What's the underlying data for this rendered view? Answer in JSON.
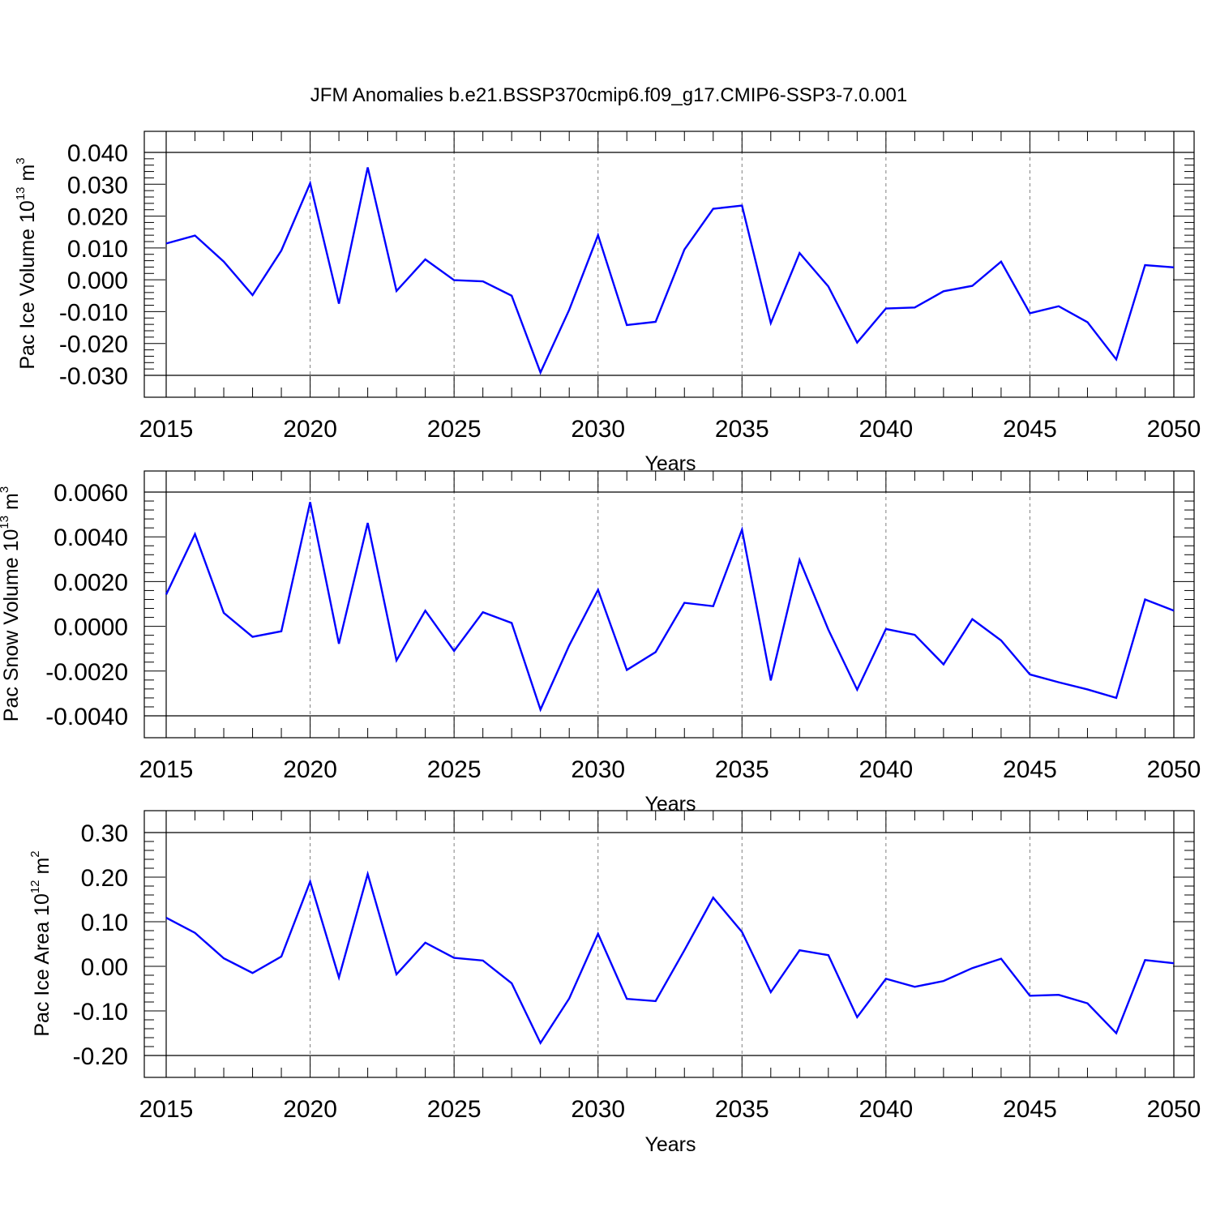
{
  "title": "JFM Anomalies b.e21.BSSP370cmip6.f09_g17.CMIP6-SSP3-7.0.001",
  "colors": {
    "line": "#0000ff",
    "axis": "#000000",
    "grid": "#808080"
  },
  "chart_data": [
    {
      "type": "line",
      "xlabel": "Years",
      "ylabel": {
        "text": "Pac Ice Volume 10",
        "sup": "13",
        "unit": " m",
        "unit_sup": "3"
      },
      "xlim": [
        2015,
        2050
      ],
      "ylim": [
        -0.03,
        0.04
      ],
      "xticks": [
        2015,
        2020,
        2025,
        2030,
        2035,
        2040,
        2045,
        2050
      ],
      "xtick_labels": [
        "2015",
        "2020",
        "2025",
        "2030",
        "2035",
        "2040",
        "2045",
        "2050"
      ],
      "yticks": [
        0.04,
        0.03,
        0.02,
        0.01,
        0.0,
        -0.01,
        -0.02,
        -0.03
      ],
      "ytick_labels": [
        "0.040",
        "0.030",
        "0.020",
        "0.010",
        "0.000",
        "-0.010",
        "-0.020",
        "-0.030"
      ],
      "grid": "dashed vertical at major x ticks",
      "series": [
        {
          "x": [
            2015,
            2016,
            2017,
            2018,
            2019,
            2020,
            2021,
            2022,
            2023,
            2024,
            2025,
            2026,
            2027,
            2028,
            2029,
            2030,
            2031,
            2032,
            2033,
            2034,
            2035,
            2036,
            2037,
            2038,
            2039,
            2040,
            2041,
            2042,
            2043,
            2044,
            2045,
            2046,
            2047,
            2048,
            2049,
            2050
          ],
          "values": [
            0.0114,
            0.0139,
            0.0057,
            -0.0048,
            0.0092,
            0.0303,
            -0.0075,
            0.0353,
            -0.0035,
            0.0064,
            -0.0001,
            -0.0005,
            -0.005,
            -0.0291,
            -0.0094,
            0.014,
            -0.0142,
            -0.0132,
            0.0095,
            0.0223,
            0.0233,
            -0.0136,
            0.0084,
            -0.0021,
            -0.0197,
            -0.009,
            -0.0087,
            -0.0036,
            -0.0019,
            0.0057,
            -0.0105,
            -0.0083,
            -0.0133,
            -0.025,
            0.0046,
            0.0039
          ]
        }
      ]
    },
    {
      "type": "line",
      "xlabel": "Years",
      "ylabel": {
        "text": "Pac Snow Volume 10",
        "sup": "13",
        "unit": " m",
        "unit_sup": "3"
      },
      "xlim": [
        2015,
        2050
      ],
      "ylim": [
        -0.004,
        0.006
      ],
      "xticks": [
        2015,
        2020,
        2025,
        2030,
        2035,
        2040,
        2045,
        2050
      ],
      "xtick_labels": [
        "2015",
        "2020",
        "2025",
        "2030",
        "2035",
        "2040",
        "2045",
        "2050"
      ],
      "yticks": [
        0.006,
        0.004,
        0.002,
        0.0,
        -0.002,
        -0.004
      ],
      "ytick_labels": [
        "0.0060",
        "0.0040",
        "0.0020",
        "0.0000",
        "-0.0020",
        "-0.0040"
      ],
      "grid": "dashed vertical at major x ticks",
      "series": [
        {
          "x": [
            2015,
            2016,
            2017,
            2018,
            2019,
            2020,
            2021,
            2022,
            2023,
            2024,
            2025,
            2026,
            2027,
            2028,
            2029,
            2030,
            2031,
            2032,
            2033,
            2034,
            2035,
            2036,
            2037,
            2038,
            2039,
            2040,
            2041,
            2042,
            2043,
            2044,
            2045,
            2046,
            2047,
            2048,
            2049,
            2050
          ],
          "values": [
            0.00142,
            0.00412,
            0.0006,
            -0.00047,
            -0.00022,
            0.00555,
            -0.00078,
            0.00462,
            -0.00152,
            0.0007,
            -0.0011,
            0.00063,
            0.00015,
            -0.00372,
            -0.00085,
            0.00163,
            -0.00195,
            -0.00115,
            0.00105,
            0.0009,
            0.00432,
            -0.00242,
            0.00297,
            -0.00015,
            -0.00283,
            -0.00012,
            -0.00038,
            -0.0017,
            0.00032,
            -0.00063,
            -0.00215,
            -0.0025,
            -0.00282,
            -0.0032,
            0.0012,
            0.0007
          ]
        }
      ]
    },
    {
      "type": "line",
      "xlabel": "Years",
      "ylabel": {
        "text": "Pac Ice Area 10",
        "sup": "12",
        "unit": " m",
        "unit_sup": "2"
      },
      "xlim": [
        2015,
        2050
      ],
      "ylim": [
        -0.2,
        0.3
      ],
      "xticks": [
        2015,
        2020,
        2025,
        2030,
        2035,
        2040,
        2045,
        2050
      ],
      "xtick_labels": [
        "2015",
        "2020",
        "2025",
        "2030",
        "2035",
        "2040",
        "2045",
        "2050"
      ],
      "yticks": [
        0.3,
        0.2,
        0.1,
        0.0,
        -0.1,
        -0.2
      ],
      "ytick_labels": [
        "0.30",
        "0.20",
        "0.10",
        "0.00",
        "-0.10",
        "-0.20"
      ],
      "grid": "dashed vertical at major x ticks",
      "series": [
        {
          "x": [
            2015,
            2016,
            2017,
            2018,
            2019,
            2020,
            2021,
            2022,
            2023,
            2024,
            2025,
            2026,
            2027,
            2028,
            2029,
            2030,
            2031,
            2032,
            2033,
            2034,
            2035,
            2036,
            2037,
            2038,
            2039,
            2040,
            2041,
            2042,
            2043,
            2044,
            2045,
            2046,
            2047,
            2048,
            2049,
            2050
          ],
          "values": [
            0.109,
            0.075,
            0.018,
            -0.015,
            0.022,
            0.19,
            -0.025,
            0.207,
            -0.018,
            0.053,
            0.019,
            0.013,
            -0.038,
            -0.172,
            -0.072,
            0.073,
            -0.073,
            -0.078,
            0.036,
            0.154,
            0.077,
            -0.058,
            0.036,
            0.025,
            -0.114,
            -0.028,
            -0.046,
            -0.033,
            -0.004,
            0.017,
            -0.066,
            -0.064,
            -0.083,
            -0.15,
            0.014,
            0.007
          ]
        }
      ]
    }
  ]
}
